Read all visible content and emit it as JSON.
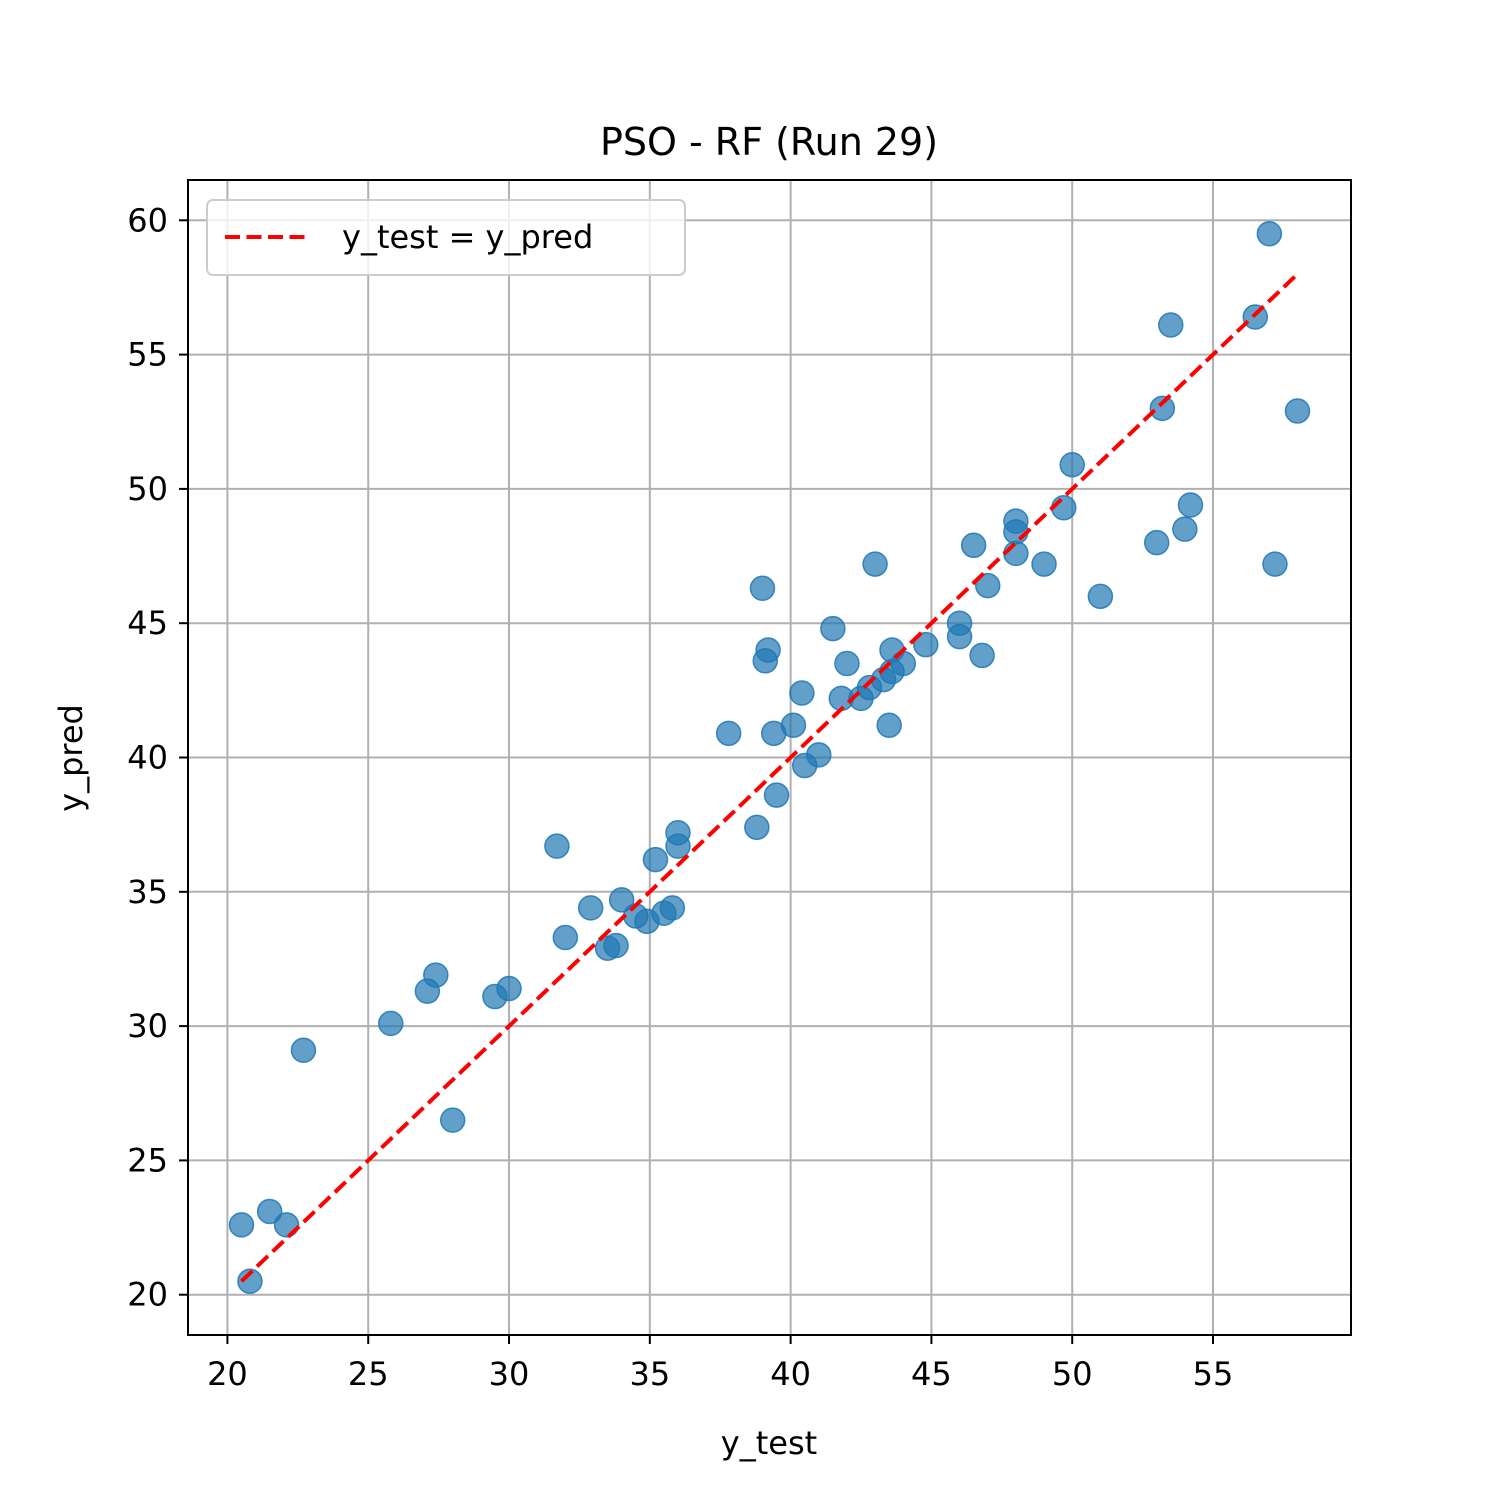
{
  "chart_data": {
    "type": "scatter",
    "title": "PSO - RF (Run 29)",
    "xlabel": "y_test",
    "ylabel": "y_pred",
    "xlim": [
      18.6,
      59.9
    ],
    "ylim": [
      18.5,
      61.5
    ],
    "xticks": [
      20,
      25,
      30,
      35,
      40,
      45,
      50,
      55
    ],
    "yticks": [
      20,
      25,
      30,
      35,
      40,
      45,
      50,
      55,
      60
    ],
    "grid": true,
    "legend": {
      "location": "upper-left",
      "entries": [
        "y_test = y_pred"
      ]
    },
    "colors": {
      "points": "#1f77b4",
      "reference_line": "#ff0000",
      "grid": "#b0b0b0"
    },
    "reference_line": {
      "label": "y_test = y_pred",
      "x": [
        20.5,
        58.0
      ],
      "y": [
        20.5,
        58.0
      ]
    },
    "series": [
      {
        "points": [
          [
            20.5,
            22.6
          ],
          [
            20.8,
            20.5
          ],
          [
            21.5,
            23.1
          ],
          [
            22.1,
            22.6
          ],
          [
            22.7,
            29.1
          ],
          [
            25.8,
            30.1
          ],
          [
            27.1,
            31.3
          ],
          [
            27.4,
            31.9
          ],
          [
            28.0,
            26.5
          ],
          [
            29.5,
            31.1
          ],
          [
            30.0,
            31.4
          ],
          [
            31.7,
            36.7
          ],
          [
            32.0,
            33.3
          ],
          [
            32.9,
            34.4
          ],
          [
            33.5,
            32.9
          ],
          [
            33.8,
            33.0
          ],
          [
            34.0,
            34.7
          ],
          [
            34.5,
            34.1
          ],
          [
            34.9,
            33.9
          ],
          [
            35.2,
            36.2
          ],
          [
            35.5,
            34.2
          ],
          [
            35.8,
            34.4
          ],
          [
            36.0,
            36.7
          ],
          [
            36.0,
            37.2
          ],
          [
            37.8,
            40.9
          ],
          [
            38.8,
            37.4
          ],
          [
            39.0,
            46.3
          ],
          [
            39.1,
            43.6
          ],
          [
            39.2,
            44.0
          ],
          [
            39.4,
            40.9
          ],
          [
            39.5,
            38.6
          ],
          [
            40.1,
            41.2
          ],
          [
            40.4,
            42.4
          ],
          [
            40.5,
            39.7
          ],
          [
            41.0,
            40.1
          ],
          [
            41.5,
            44.8
          ],
          [
            41.8,
            42.2
          ],
          [
            42.0,
            43.5
          ],
          [
            42.5,
            42.2
          ],
          [
            42.8,
            42.6
          ],
          [
            43.0,
            47.2
          ],
          [
            43.3,
            42.9
          ],
          [
            43.5,
            41.2
          ],
          [
            43.6,
            43.2
          ],
          [
            43.6,
            44.0
          ],
          [
            44.0,
            43.5
          ],
          [
            44.8,
            44.2
          ],
          [
            46.0,
            45.0
          ],
          [
            46.0,
            44.5
          ],
          [
            46.5,
            47.9
          ],
          [
            46.8,
            43.8
          ],
          [
            47.0,
            46.4
          ],
          [
            48.0,
            48.8
          ],
          [
            48.0,
            48.4
          ],
          [
            48.0,
            47.6
          ],
          [
            49.0,
            47.2
          ],
          [
            49.7,
            49.3
          ],
          [
            50.0,
            50.9
          ],
          [
            51.0,
            46.0
          ],
          [
            53.0,
            48.0
          ],
          [
            53.2,
            53.0
          ],
          [
            53.5,
            56.1
          ],
          [
            54.0,
            48.5
          ],
          [
            54.2,
            49.4
          ],
          [
            56.5,
            56.4
          ],
          [
            57.0,
            59.5
          ],
          [
            57.2,
            47.2
          ],
          [
            58.0,
            52.9
          ]
        ]
      }
    ]
  }
}
